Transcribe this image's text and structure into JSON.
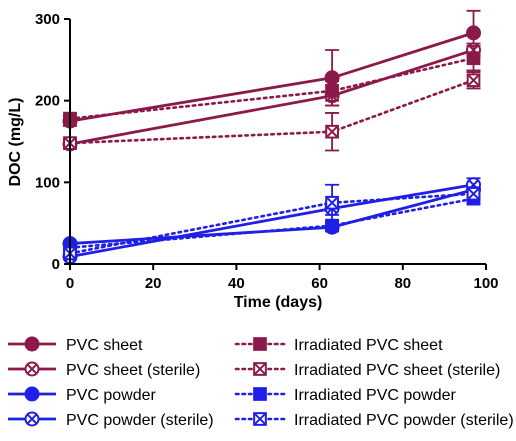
{
  "chart_data": {
    "type": "line",
    "xlabel": "Time (days)",
    "ylabel": "DOC (mg/L)",
    "xlim": [
      0,
      100
    ],
    "ylim": [
      0,
      300
    ],
    "x_ticks": [
      0,
      20,
      40,
      60,
      80,
      100
    ],
    "y_ticks": [
      0,
      100,
      200,
      300
    ],
    "grid": false,
    "legend_position": "bottom",
    "colors": {
      "sheet": "#8b1a4a",
      "powder": "#1f1fe8"
    },
    "series": [
      {
        "name": "PVC sheet",
        "color": "#8b1a4a",
        "line": "solid",
        "marker": "circle-filled",
        "x": [
          0,
          63,
          97
        ],
        "y": [
          175,
          228,
          283
        ],
        "err": [
          6,
          34,
          27
        ]
      },
      {
        "name": "PVC sheet (sterile)",
        "color": "#8b1a4a",
        "line": "solid",
        "marker": "circle-x",
        "x": [
          0,
          63,
          97
        ],
        "y": [
          147,
          206,
          262
        ],
        "err": [
          5,
          12,
          8
        ]
      },
      {
        "name": "PVC powder",
        "color": "#1f1fe8",
        "line": "solid",
        "marker": "circle-filled",
        "x": [
          0,
          63,
          97
        ],
        "y": [
          25,
          45,
          91
        ],
        "err": [
          2,
          5,
          6
        ]
      },
      {
        "name": "PVC powder (sterile)",
        "color": "#1f1fe8",
        "line": "solid",
        "marker": "circle-x",
        "x": [
          0,
          63,
          97
        ],
        "y": [
          9,
          68,
          97
        ],
        "err": [
          3,
          8,
          8
        ]
      },
      {
        "name": "Irradiated PVC sheet",
        "color": "#8b1a4a",
        "line": "dotted",
        "marker": "square-filled",
        "x": [
          0,
          63,
          97
        ],
        "y": [
          178,
          212,
          252
        ],
        "err": [
          4,
          12,
          15
        ]
      },
      {
        "name": "Irradiated PVC sheet (sterile)",
        "color": "#8b1a4a",
        "line": "dotted",
        "marker": "square-x",
        "x": [
          0,
          63,
          97
        ],
        "y": [
          148,
          162,
          225
        ],
        "err": [
          5,
          23,
          10
        ]
      },
      {
        "name": "Irradiated PVC powder",
        "color": "#1f1fe8",
        "line": "dotted",
        "marker": "square-filled",
        "x": [
          0,
          63,
          97
        ],
        "y": [
          20,
          47,
          80
        ],
        "err": [
          2,
          5,
          6
        ]
      },
      {
        "name": "Irradiated PVC powder (sterile)",
        "color": "#1f1fe8",
        "line": "dotted",
        "marker": "square-x",
        "x": [
          0,
          63,
          97
        ],
        "y": [
          13,
          75,
          86
        ],
        "err": [
          2,
          22,
          8
        ]
      }
    ]
  }
}
